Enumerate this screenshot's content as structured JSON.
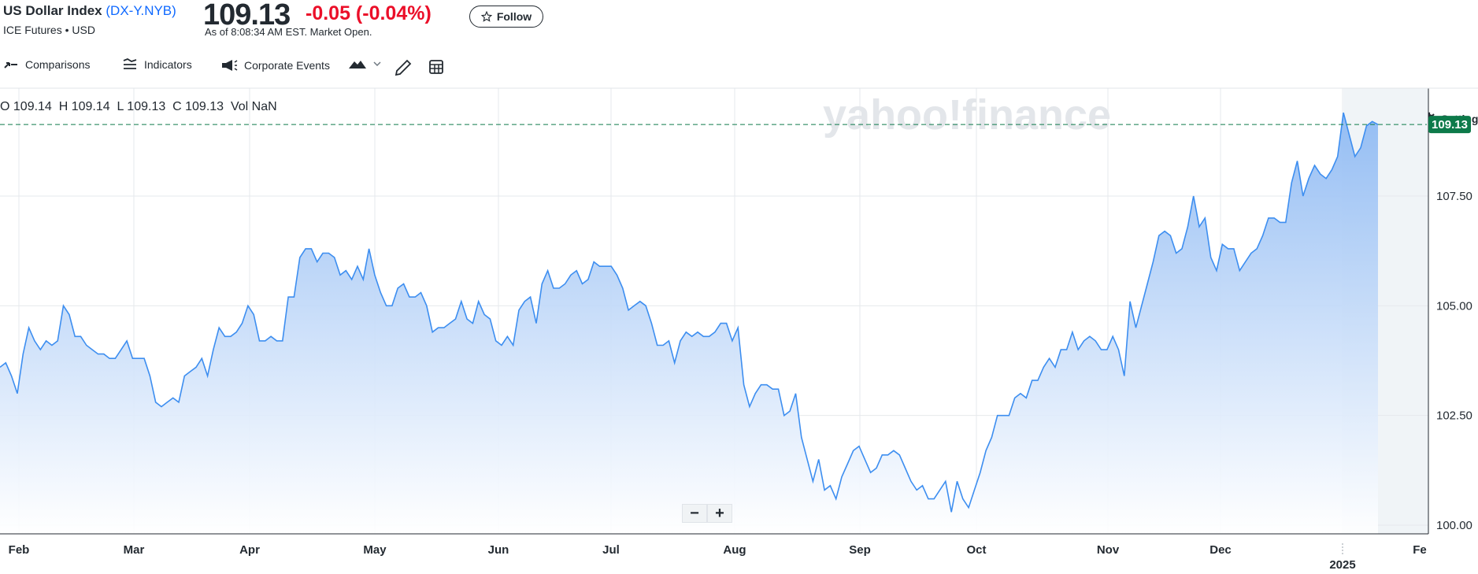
{
  "header": {
    "name": "US Dollar Index",
    "ticker": "DX-Y.NYB",
    "subtitle": "ICE Futures • USD",
    "price": "109.13",
    "change": "-0.05 (-0.04%)",
    "as_of": "As of 8:08:34 AM EST. Market Open.",
    "follow_label": "Follow"
  },
  "toolbar": {
    "comparisons": "Comparisons",
    "indicators": "Indicators",
    "corporate_events": "Corporate Events",
    "settings": "Settings"
  },
  "ohlc": {
    "text": "O 109.14  H 109.14  L 109.13  C 109.13  Vol NaN"
  },
  "watermark": "yahoo!finance",
  "zoom": {
    "minus": "−",
    "plus": "+"
  },
  "colors": {
    "line": "#3d8ef0",
    "fill_top": "#8fbaf3",
    "fill_bottom": "#ffffff",
    "current_price_bg": "#0d7a4a",
    "negative": "#eb0f29",
    "link": "#0f69ff"
  },
  "chart_data": {
    "type": "area",
    "ylim": [
      99.8,
      109.8
    ],
    "y_ticks": [
      100.0,
      102.5,
      105.0,
      107.5
    ],
    "y_tick_labels": [
      "100.00",
      "102.50",
      "105.00",
      "107.50"
    ],
    "current_price_label": "109.13",
    "current_price": 109.13,
    "x_labels": [
      "Feb",
      "Mar",
      "Apr",
      "May",
      "Jun",
      "Jul",
      "Aug",
      "Sep",
      "Oct",
      "Nov",
      "Dec",
      "Fe"
    ],
    "x_year_label": "2025",
    "series": [
      {
        "values": [
          103.6,
          103.7,
          103.4,
          103.0,
          103.9,
          104.5,
          104.2,
          104.0,
          104.2,
          104.1,
          104.2,
          105.0,
          104.8,
          104.3,
          104.3,
          104.1,
          104.0,
          103.9,
          103.9,
          103.8,
          103.8,
          104.0,
          104.2,
          103.8,
          103.8,
          103.8,
          103.4,
          102.8,
          102.7,
          102.8,
          102.9,
          102.8,
          103.4,
          103.5,
          103.6,
          103.8,
          103.4,
          104.0,
          104.5,
          104.3,
          104.3,
          104.4,
          104.6,
          105.0,
          104.8,
          104.2,
          104.2,
          104.3,
          104.2,
          104.2,
          105.2,
          105.2,
          106.1,
          106.3,
          106.3,
          106.0,
          106.2,
          106.2,
          106.1,
          105.7,
          105.8,
          105.6,
          105.9,
          105.6,
          106.3,
          105.7,
          105.3,
          105.0,
          105.0,
          105.4,
          105.5,
          105.2,
          105.2,
          105.3,
          105.0,
          104.4,
          104.5,
          104.5,
          104.6,
          104.7,
          105.1,
          104.7,
          104.6,
          105.1,
          104.8,
          104.7,
          104.2,
          104.1,
          104.3,
          104.1,
          104.9,
          105.1,
          105.2,
          104.6,
          105.5,
          105.8,
          105.4,
          105.4,
          105.5,
          105.7,
          105.8,
          105.5,
          105.6,
          106.0,
          105.9,
          105.9,
          105.9,
          105.7,
          105.4,
          104.9,
          105.0,
          105.1,
          105.0,
          104.6,
          104.1,
          104.1,
          104.2,
          103.7,
          104.2,
          104.4,
          104.3,
          104.4,
          104.3,
          104.3,
          104.4,
          104.6,
          104.6,
          104.2,
          104.5,
          103.2,
          102.7,
          103.0,
          103.2,
          103.2,
          103.1,
          103.1,
          102.5,
          102.6,
          103.0,
          102.0,
          101.5,
          101.0,
          101.5,
          100.8,
          100.9,
          100.6,
          101.1,
          101.4,
          101.7,
          101.8,
          101.5,
          101.2,
          101.3,
          101.6,
          101.6,
          101.7,
          101.6,
          101.3,
          101.0,
          100.8,
          100.9,
          100.6,
          100.6,
          100.8,
          101.0,
          100.3,
          101.0,
          100.6,
          100.4,
          100.8,
          101.2,
          101.7,
          102.0,
          102.5,
          102.5,
          102.5,
          102.9,
          103.0,
          102.9,
          103.3,
          103.3,
          103.6,
          103.8,
          103.6,
          104.0,
          104.0,
          104.4,
          104.0,
          104.2,
          104.3,
          104.2,
          104.0,
          104.0,
          104.3,
          104.0,
          103.4,
          105.1,
          104.5,
          105.0,
          105.5,
          106.0,
          106.6,
          106.7,
          106.6,
          106.2,
          106.3,
          106.8,
          107.5,
          106.8,
          107.0,
          106.1,
          105.8,
          106.4,
          106.3,
          106.3,
          105.8,
          106.0,
          106.2,
          106.3,
          106.6,
          107.0,
          107.0,
          106.9,
          106.9,
          107.8,
          108.3,
          107.5,
          107.9,
          108.2,
          108.0,
          107.9,
          108.1,
          108.4,
          109.4,
          108.9,
          108.4,
          108.6,
          109.1,
          109.2,
          109.13
        ]
      }
    ]
  }
}
